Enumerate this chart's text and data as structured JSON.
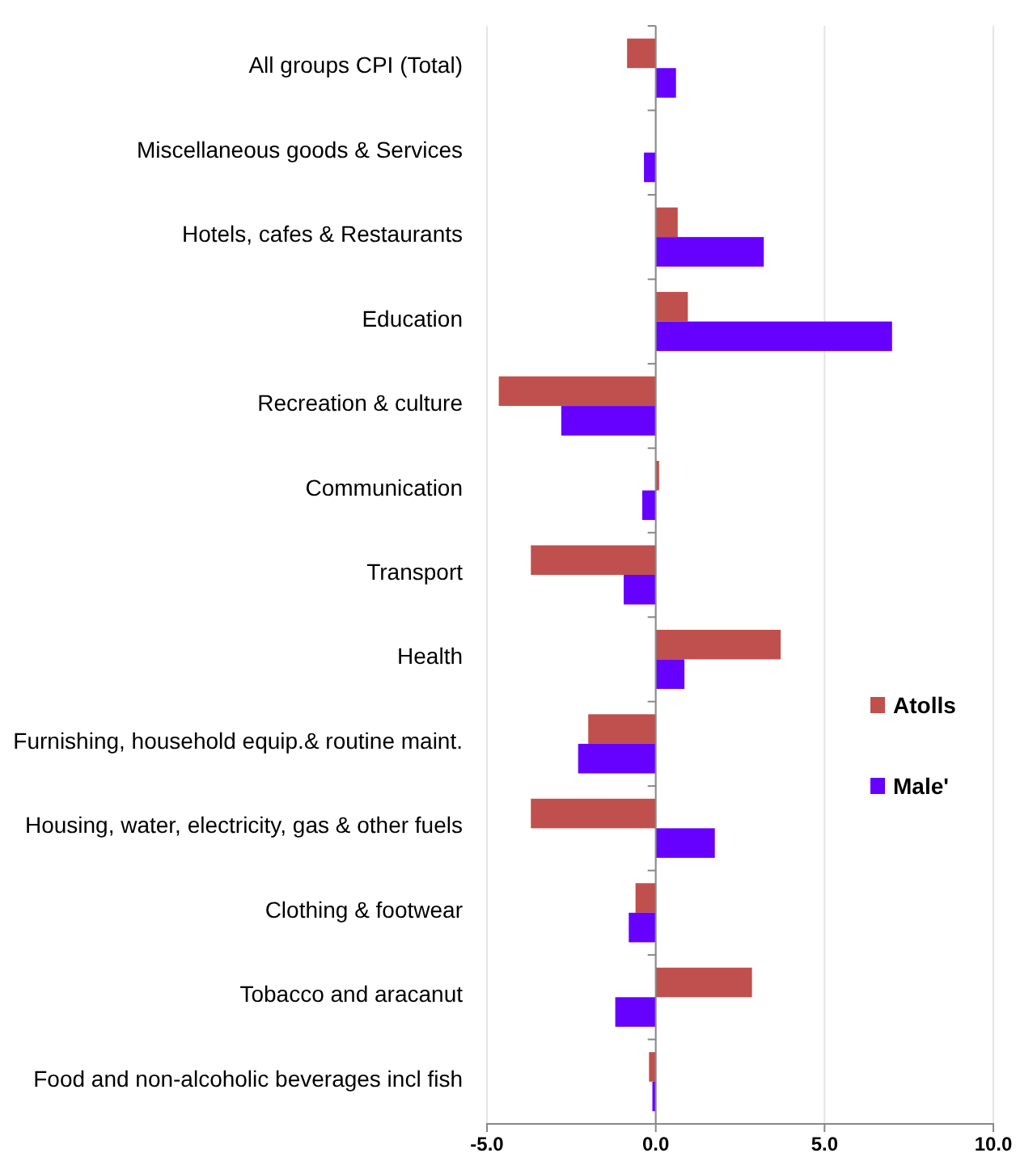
{
  "chart_data": {
    "type": "bar",
    "orientation": "horizontal",
    "categories": [
      "All groups CPI (Total)",
      "Miscellaneous goods & Services",
      "Hotels, cafes & Restaurants",
      "Education",
      "Recreation & culture",
      "Communication",
      "Transport",
      "Health",
      "Furnishing, household equip.& routine maint.",
      "Housing, water, electricity, gas & other fuels",
      "Clothing & footwear",
      "Tobacco and aracanut",
      "Food and non-alcoholic beverages incl fish"
    ],
    "series": [
      {
        "name": "Atolls",
        "color": "#c0504d",
        "values": [
          -0.85,
          0,
          0.65,
          0.95,
          -4.65,
          0.1,
          -3.7,
          3.7,
          -2.0,
          -3.7,
          -0.6,
          2.85,
          -0.2
        ]
      },
      {
        "name": "Male'",
        "color": "#6600ff",
        "values": [
          0.6,
          -0.35,
          3.2,
          7.0,
          -2.8,
          -0.4,
          -0.95,
          0.85,
          -2.3,
          1.75,
          -0.8,
          -1.2,
          -0.1
        ]
      }
    ],
    "xlim": [
      -5,
      10
    ],
    "xticks": [
      {
        "value": -5,
        "label": "-5.0"
      },
      {
        "value": 0,
        "label": "0.0"
      },
      {
        "value": 5,
        "label": "5.0"
      },
      {
        "value": 10,
        "label": "10.0"
      }
    ],
    "grid": "x",
    "legend": "right"
  }
}
